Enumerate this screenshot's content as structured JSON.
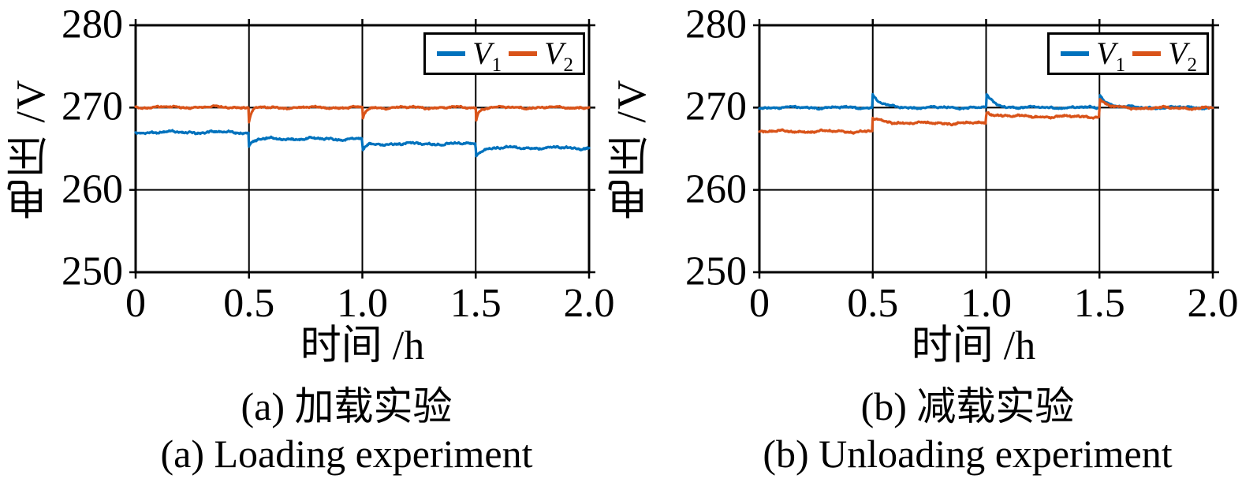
{
  "figure": {
    "background": "#ffffff",
    "axis_color": "#000000",
    "grid_linewidth": 2,
    "border_linewidth": 3,
    "series_linewidth": 3.2,
    "tick_length": 8
  },
  "chart_data": [
    {
      "id": "a",
      "type": "line",
      "caption_zh": "(a) 加载实验",
      "caption_en": "(a) Loading experiment",
      "xlabel": "时间 /h",
      "ylabel": "电压 /V",
      "xlim": [
        0,
        2.0
      ],
      "ylim": [
        250,
        280
      ],
      "xticks": [
        0,
        0.5,
        1.0,
        1.5,
        2.0
      ],
      "xtick_labels": [
        "0",
        "0.5",
        "1.0",
        "1.5",
        "2.0"
      ],
      "yticks": [
        280,
        270,
        260,
        250
      ],
      "ytick_labels": [
        "280",
        "270",
        "260",
        "250"
      ],
      "grid": true,
      "legend_position": "top-right",
      "series": [
        {
          "name": "V1",
          "label_base": "V",
          "label_sub": "1",
          "color": "#0072BD",
          "seed": 11,
          "noise": 0.16,
          "step_times": [
            0.5,
            1.0,
            1.5
          ],
          "levels": [
            267.0,
            266.2,
            265.6,
            265.1
          ],
          "events": [
            {
              "t": 0.5,
              "amp": -0.9,
              "tau": 0.018
            },
            {
              "t": 1.0,
              "amp": -0.9,
              "tau": 0.018
            },
            {
              "t": 1.5,
              "amp": -1.2,
              "tau": 0.018
            }
          ]
        },
        {
          "name": "V2",
          "label_base": "V",
          "label_sub": "2",
          "color": "#D95319",
          "seed": 22,
          "noise": 0.14,
          "step_times": [
            0.5,
            1.0,
            1.5
          ],
          "levels": [
            270.05,
            270.0,
            270.0,
            270.0
          ],
          "events": [
            {
              "t": 0.5,
              "amp": -1.7,
              "tau": 0.012
            },
            {
              "t": 1.0,
              "amp": -1.7,
              "tau": 0.012
            },
            {
              "t": 1.5,
              "amp": -1.8,
              "tau": 0.012
            }
          ]
        }
      ]
    },
    {
      "id": "b",
      "type": "line",
      "caption_zh": "(b) 减载实验",
      "caption_en": "(b) Unloading experiment",
      "xlabel": "时间 /h",
      "ylabel": "电压 /V",
      "xlim": [
        0,
        2.0
      ],
      "ylim": [
        250,
        280
      ],
      "xticks": [
        0,
        0.5,
        1.0,
        1.5,
        2.0
      ],
      "xtick_labels": [
        "0",
        "0.5",
        "1.0",
        "1.5",
        "2.0"
      ],
      "yticks": [
        280,
        270,
        260,
        250
      ],
      "ytick_labels": [
        "280",
        "270",
        "260",
        "250"
      ],
      "grid": true,
      "legend_position": "top-right",
      "series": [
        {
          "name": "V1",
          "label_base": "V",
          "label_sub": "1",
          "color": "#0072BD",
          "seed": 33,
          "noise": 0.14,
          "step_times": [
            0.5,
            1.0,
            1.5
          ],
          "levels": [
            270.0,
            270.0,
            270.0,
            270.0
          ],
          "events": [
            {
              "t": 0.5,
              "amp": 1.6,
              "tau": 0.035
            },
            {
              "t": 1.0,
              "amp": 1.6,
              "tau": 0.035
            },
            {
              "t": 1.5,
              "amp": 1.7,
              "tau": 0.035
            }
          ]
        },
        {
          "name": "V2",
          "label_base": "V",
          "label_sub": "2",
          "color": "#D95319",
          "seed": 44,
          "noise": 0.15,
          "step_times": [
            0.5,
            1.0,
            1.5
          ],
          "levels": [
            267.1,
            268.1,
            268.9,
            269.95
          ],
          "events": [
            {
              "t": 0.5,
              "amp": 0.55,
              "tau": 0.055
            },
            {
              "t": 1.0,
              "amp": 0.55,
              "tau": 0.055
            },
            {
              "t": 1.5,
              "amp": 1.25,
              "tau": 0.03
            }
          ]
        }
      ]
    }
  ]
}
